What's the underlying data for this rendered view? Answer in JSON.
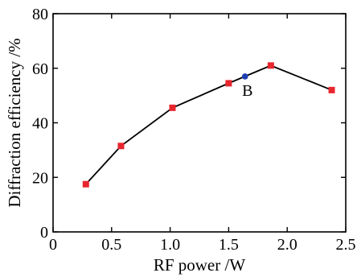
{
  "chart_data": {
    "type": "line",
    "xlabel": "RF power /W",
    "ylabel": "Diffraction efficiency /%",
    "xlim": [
      0,
      2.5
    ],
    "ylim": [
      0,
      80
    ],
    "xticks": [
      "0",
      "0.5",
      "1.0",
      "1.5",
      "2.0",
      "2.5"
    ],
    "yticks": [
      "0",
      "20",
      "40",
      "60",
      "80"
    ],
    "grid": false,
    "series": [
      {
        "color": "#e8262e",
        "marker": "square",
        "line_color": "#000000",
        "points": [
          {
            "x": 0.28,
            "y": 17.5
          },
          {
            "x": 0.58,
            "y": 31.5
          },
          {
            "x": 1.02,
            "y": 45.5
          },
          {
            "x": 1.5,
            "y": 54.5
          },
          {
            "x": 1.86,
            "y": 61.0
          },
          {
            "x": 2.38,
            "y": 52.0
          }
        ]
      }
    ],
    "annotations": [
      {
        "label": "B",
        "x": 1.64,
        "y": 57.0,
        "color": "#1f3fb4",
        "marker": "circle"
      }
    ]
  }
}
